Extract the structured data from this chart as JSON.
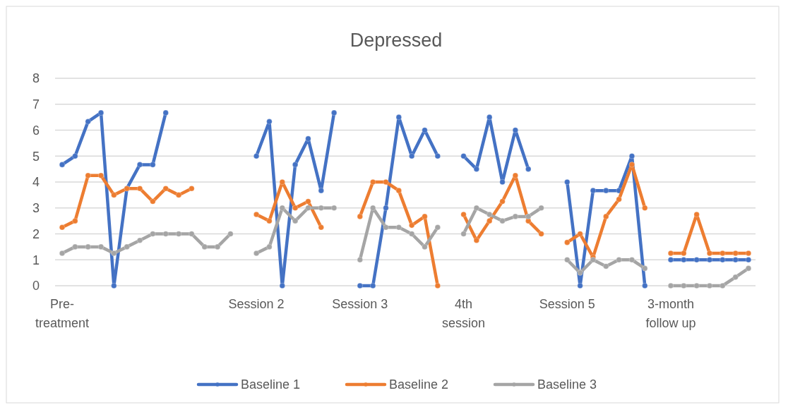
{
  "chart_data": {
    "type": "line",
    "title": "Depressed",
    "categories": [
      "Pre-treatment",
      null,
      null,
      null,
      null,
      null,
      null,
      null,
      null,
      null,
      null,
      null,
      null,
      null,
      null,
      "Session 2",
      null,
      null,
      null,
      null,
      null,
      null,
      null,
      "Session 3",
      null,
      null,
      null,
      null,
      null,
      null,
      null,
      "4th session",
      null,
      null,
      null,
      null,
      null,
      null,
      null,
      "Session 5",
      null,
      null,
      null,
      null,
      null,
      null,
      null,
      "3-month follow up",
      null,
      null,
      null,
      null,
      null,
      null
    ],
    "series": [
      {
        "name": "Baseline 1",
        "color": "#4472c4",
        "values": [
          4.67,
          5,
          6.33,
          6.67,
          0,
          3.75,
          4.67,
          4.67,
          6.67,
          null,
          null,
          null,
          null,
          null,
          null,
          5,
          6.33,
          0,
          4.67,
          5.67,
          3.67,
          6.67,
          null,
          0,
          0,
          3,
          6.5,
          5,
          6,
          5,
          null,
          5,
          4.5,
          6.5,
          4,
          6,
          4.5,
          null,
          null,
          4,
          0,
          3.67,
          3.67,
          3.67,
          5,
          0,
          null,
          1,
          1,
          1,
          1,
          1,
          1,
          1
        ]
      },
      {
        "name": "Baseline 2",
        "color": "#ed7d31",
        "values": [
          2.25,
          2.5,
          4.25,
          4.25,
          3.5,
          3.75,
          3.75,
          3.25,
          3.75,
          3.5,
          3.75,
          null,
          null,
          null,
          null,
          2.75,
          2.5,
          4,
          3,
          3.25,
          2.25,
          null,
          null,
          2.67,
          4,
          4,
          3.67,
          2.33,
          2.67,
          0,
          null,
          2.75,
          1.75,
          2.5,
          3.25,
          4.25,
          2.5,
          2,
          null,
          1.67,
          2,
          1.1,
          2.67,
          3.33,
          4.67,
          3,
          null,
          1.25,
          1.25,
          2.75,
          1.25,
          1.25,
          1.25,
          1.25
        ]
      },
      {
        "name": "Baseline 3",
        "color": "#a5a5a5",
        "values": [
          1.25,
          1.5,
          1.5,
          1.5,
          1.25,
          1.5,
          1.75,
          2,
          2,
          2,
          2,
          1.5,
          1.5,
          2,
          null,
          1.25,
          1.5,
          3,
          2.5,
          3,
          3,
          3,
          null,
          1,
          3,
          2.25,
          2.25,
          2,
          1.5,
          2.25,
          null,
          2,
          3,
          2.75,
          2.5,
          2.67,
          2.67,
          3,
          null,
          1,
          0.5,
          1,
          0.75,
          1,
          1,
          0.67,
          null,
          0,
          0,
          0,
          0,
          0,
          0.33,
          0.67
        ]
      }
    ],
    "ylim": [
      0,
      8
    ],
    "yticks": [
      0,
      1,
      2,
      3,
      4,
      5,
      6,
      7,
      8
    ],
    "grid": "y",
    "legend": "bottom",
    "marker": "circle",
    "line_style": "solid"
  }
}
